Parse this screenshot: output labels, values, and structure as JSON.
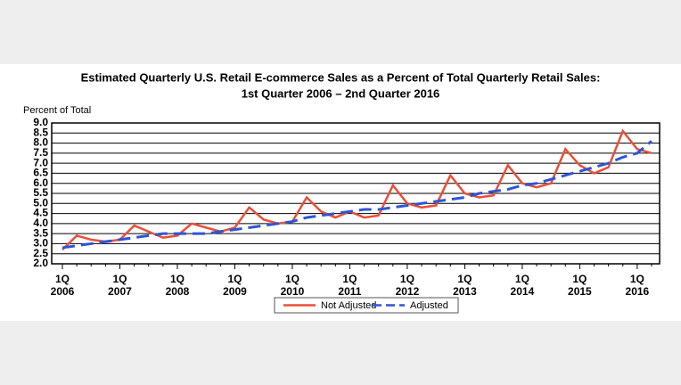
{
  "chart_data": {
    "type": "line",
    "title": "Estimated Quarterly U.S. Retail E-commerce Sales as a Percent of Total Quarterly Retail Sales:",
    "subtitle": "1st Quarter 2006 – 2nd Quarter 2016",
    "y_label": "Percent of Total",
    "categories": [
      "1Q\n2006",
      null,
      null,
      null,
      "1Q\n2007",
      null,
      null,
      null,
      "1Q\n2008",
      null,
      null,
      null,
      "1Q\n2009",
      null,
      null,
      null,
      "1Q\n2010",
      null,
      null,
      null,
      "1Q\n2011",
      null,
      null,
      null,
      "1Q\n2012",
      null,
      null,
      null,
      "1Q\n2013",
      null,
      null,
      null,
      "1Q\n2014",
      null,
      null,
      null,
      "1Q\n2015",
      null,
      null,
      null,
      "1Q\n2016",
      null
    ],
    "series": [
      {
        "name": "Not Adjusted",
        "color": "#e8503a",
        "dash": false,
        "values": [
          2.7,
          3.4,
          3.2,
          3.1,
          3.2,
          3.9,
          3.6,
          3.3,
          3.4,
          4.0,
          3.8,
          3.6,
          3.8,
          4.8,
          4.2,
          4.0,
          4.1,
          5.3,
          4.6,
          4.3,
          4.6,
          4.3,
          4.4,
          5.9,
          5.0,
          4.8,
          4.9,
          6.4,
          5.5,
          5.3,
          5.4,
          6.9,
          6.0,
          5.8,
          6.0,
          7.7,
          6.9,
          6.5,
          6.8,
          8.6,
          7.7,
          7.5
        ]
      },
      {
        "name": "Adjusted",
        "color": "#2f55d4",
        "dash": true,
        "values": [
          2.8,
          2.9,
          3.0,
          3.1,
          3.2,
          3.3,
          3.4,
          3.5,
          3.5,
          3.5,
          3.5,
          3.6,
          3.7,
          3.8,
          3.9,
          4.0,
          4.1,
          4.3,
          4.4,
          4.5,
          4.6,
          4.7,
          4.7,
          4.8,
          4.9,
          5.0,
          5.1,
          5.2,
          5.3,
          5.5,
          5.6,
          5.7,
          5.9,
          6.0,
          6.2,
          6.4,
          6.6,
          6.8,
          7.0,
          7.3,
          7.5,
          8.1
        ]
      }
    ],
    "ylim": [
      2,
      9
    ],
    "yticks": [
      {
        "value": 2,
        "label": "2.0"
      },
      2.5,
      {
        "value": 3,
        "label": "3.0"
      },
      3.5,
      {
        "value": 4,
        "label": "4.0"
      },
      4.5,
      {
        "value": 5,
        "label": "5.0"
      },
      5.5,
      {
        "value": 6,
        "label": "6.0"
      },
      6.5,
      {
        "value": 7,
        "label": "7.0"
      },
      7.5,
      {
        "value": 8,
        "label": "8.0"
      },
      8.5,
      {
        "value": 9,
        "label": "9.0"
      }
    ],
    "grid": true,
    "legend": "bottom"
  }
}
